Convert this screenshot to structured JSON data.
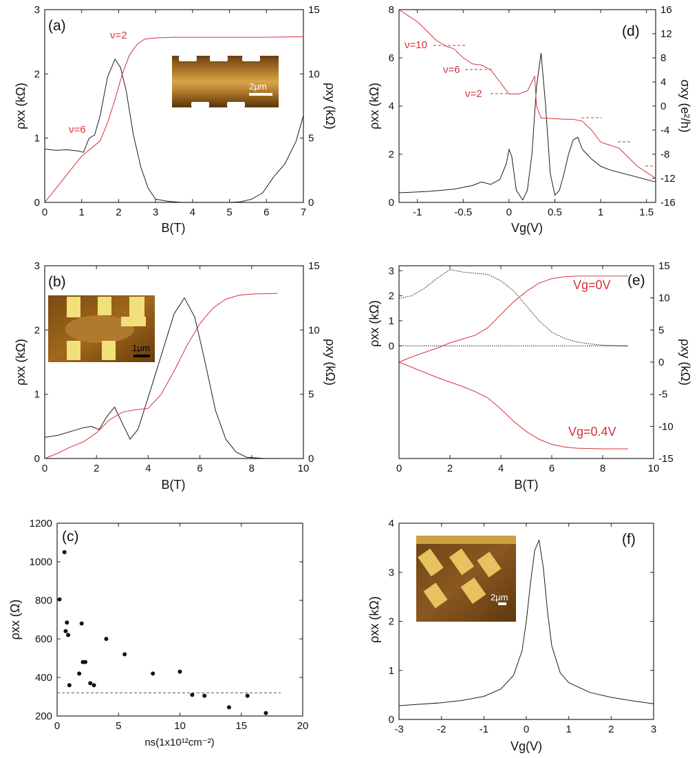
{
  "colors": {
    "black_series": "#1a1a1a",
    "red_series": "#d6303a",
    "afm_brown": "#8a5a1c",
    "afm_gold": "#e9c96a"
  },
  "chart_data": [
    {
      "panel": "(a)",
      "type": "line",
      "xlabel": "B(T)",
      "ylabel": "ρxx (kΩ)",
      "y2label": "ρxy (kΩ)",
      "xlim": [
        0,
        7
      ],
      "ylim": [
        0,
        3
      ],
      "y2lim": [
        0,
        15
      ],
      "xticks": [
        "0",
        "1",
        "2",
        "3",
        "4",
        "5",
        "6",
        "7"
      ],
      "yticks": [
        "0",
        "1",
        "2",
        "3"
      ],
      "y2ticks": [
        "0",
        "5",
        "10",
        "15"
      ],
      "annotations": [
        "ν=2",
        "ν=6"
      ],
      "inset": {
        "kind": "AFM image",
        "scale_bar": "2μm"
      },
      "series": [
        {
          "axis": "left",
          "color": "black",
          "x": [
            0,
            0.3,
            0.6,
            0.9,
            1.05,
            1.2,
            1.35,
            1.5,
            1.7,
            1.9,
            2.05,
            2.2,
            2.4,
            2.6,
            2.8,
            3.0,
            3.3,
            3.7,
            4.0,
            4.5,
            5.0,
            5.3,
            5.6,
            5.9,
            6.2,
            6.5,
            6.8,
            7.0
          ],
          "y": [
            0.83,
            0.81,
            0.82,
            0.8,
            0.78,
            1.0,
            1.05,
            1.35,
            1.95,
            2.23,
            2.1,
            1.75,
            1.05,
            0.55,
            0.22,
            0.05,
            0.02,
            0,
            0,
            0,
            0,
            0.01,
            0.05,
            0.15,
            0.4,
            0.6,
            0.95,
            1.35
          ]
        },
        {
          "axis": "right",
          "color": "red",
          "x": [
            0,
            0.5,
            1.0,
            1.3,
            1.5,
            1.7,
            1.9,
            2.1,
            2.3,
            2.5,
            2.7,
            3.0,
            3.5,
            4,
            5,
            6,
            7
          ],
          "y": [
            0,
            1.8,
            3.6,
            4.3,
            4.8,
            6.2,
            8.0,
            10.0,
            11.5,
            12.3,
            12.7,
            12.8,
            12.85,
            12.85,
            12.85,
            12.85,
            12.9
          ]
        }
      ]
    },
    {
      "panel": "(b)",
      "type": "line",
      "xlabel": "B(T)",
      "ylabel": "ρxx (kΩ)",
      "y2label": "ρxy (kΩ)",
      "xlim": [
        0,
        10
      ],
      "ylim": [
        0,
        3
      ],
      "y2lim": [
        0,
        15
      ],
      "xticks": [
        "0",
        "2",
        "4",
        "6",
        "8",
        "10"
      ],
      "yticks": [
        "0",
        "1",
        "2",
        "3"
      ],
      "y2ticks": [
        "0",
        "5",
        "10",
        "15"
      ],
      "inset": {
        "kind": "AFM image",
        "scale_bar": "1μm"
      },
      "series": [
        {
          "axis": "left",
          "color": "black",
          "x": [
            0,
            0.5,
            1,
            1.5,
            1.8,
            2.1,
            2.4,
            2.7,
            3.0,
            3.3,
            3.6,
            4.0,
            4.5,
            5.0,
            5.4,
            5.8,
            6.2,
            6.6,
            7.0,
            7.4,
            7.8,
            8.5,
            9
          ],
          "y": [
            0.33,
            0.36,
            0.42,
            0.48,
            0.5,
            0.45,
            0.65,
            0.8,
            0.55,
            0.3,
            0.45,
            0.95,
            1.6,
            2.25,
            2.5,
            2.2,
            1.5,
            0.75,
            0.3,
            0.1,
            0.02,
            0,
            0
          ]
        },
        {
          "axis": "right",
          "color": "red",
          "x": [
            0,
            0.5,
            1,
            1.5,
            2,
            2.5,
            3,
            3.5,
            4,
            4.5,
            5,
            5.5,
            6,
            6.5,
            7,
            7.5,
            8,
            9
          ],
          "y": [
            0,
            0.4,
            0.9,
            1.3,
            2.0,
            3.0,
            3.6,
            3.8,
            3.9,
            5.0,
            6.8,
            8.8,
            10.5,
            11.7,
            12.4,
            12.7,
            12.8,
            12.85
          ]
        }
      ]
    },
    {
      "panel": "(c)",
      "type": "scatter",
      "xlabel": "ns(1x10¹²cm⁻²)",
      "ylabel": "ρxx (Ω)",
      "xlim": [
        0,
        20
      ],
      "ylim": [
        200,
        1200
      ],
      "xticks": [
        "0",
        "5",
        "10",
        "15",
        "20"
      ],
      "yticks": [
        "200",
        "400",
        "600",
        "800",
        "1000",
        "1200"
      ],
      "reference_line_y": 320,
      "x": [
        0.2,
        0.6,
        0.7,
        0.8,
        0.9,
        1.0,
        1.8,
        2.0,
        2.1,
        2.3,
        2.7,
        3.0,
        4.0,
        5.5,
        7.8,
        10.0,
        11.0,
        12.0,
        14.0,
        15.5,
        17.0
      ],
      "y": [
        805,
        1050,
        640,
        685,
        620,
        360,
        420,
        680,
        480,
        480,
        370,
        360,
        600,
        520,
        420,
        430,
        310,
        305,
        245,
        305,
        215
      ]
    },
    {
      "panel": "(d)",
      "type": "line",
      "xlabel": "Vg(V)",
      "ylabel": "ρxx (kΩ)",
      "y2label": "σxy (e²/h)",
      "xlim": [
        -1.2,
        1.6
      ],
      "ylim": [
        0,
        8
      ],
      "y2lim": [
        -16,
        16
      ],
      "xticks": [
        "-1",
        "-0.5",
        "0",
        "0.5",
        "1",
        "1.5"
      ],
      "yticks": [
        "0",
        "2",
        "4",
        "6",
        "8"
      ],
      "y2ticks": [
        "-16",
        "-12",
        "-8",
        "-4",
        "0",
        "4",
        "8",
        "12",
        "16"
      ],
      "annotations": [
        "ν=10",
        "ν=6",
        "ν=2"
      ],
      "series": [
        {
          "axis": "left",
          "color": "black",
          "x": [
            -1.2,
            -0.9,
            -0.6,
            -0.4,
            -0.3,
            -0.2,
            -0.1,
            -0.03,
            0,
            0.03,
            0.08,
            0.15,
            0.2,
            0.25,
            0.3,
            0.35,
            0.4,
            0.45,
            0.5,
            0.55,
            0.6,
            0.65,
            0.7,
            0.75,
            0.8,
            0.9,
            1.0,
            1.1,
            1.3,
            1.5,
            1.6
          ],
          "y": [
            0.4,
            0.45,
            0.55,
            0.7,
            0.85,
            0.75,
            0.95,
            1.6,
            2.2,
            1.9,
            0.5,
            0.1,
            0.5,
            2.0,
            4.8,
            6.2,
            4.0,
            1.2,
            0.3,
            0.5,
            1.2,
            2.0,
            2.6,
            2.7,
            2.2,
            1.8,
            1.5,
            1.35,
            1.15,
            0.95,
            0.85
          ]
        },
        {
          "axis": "right",
          "color": "red",
          "x": [
            -1.2,
            -1.1,
            -1.0,
            -0.9,
            -0.8,
            -0.7,
            -0.6,
            -0.5,
            -0.4,
            -0.3,
            -0.2,
            -0.1,
            0,
            0.1,
            0.2,
            0.25,
            0.28,
            0.3,
            0.35,
            0.4,
            0.6,
            0.7,
            0.8,
            0.9,
            1.0,
            1.1,
            1.2,
            1.3,
            1.4,
            1.5,
            1.6
          ],
          "y": [
            16,
            15,
            14,
            12.5,
            11,
            10,
            9.5,
            8,
            7,
            6.8,
            6,
            4,
            2,
            2,
            2.5,
            4,
            5,
            0,
            -2,
            -2,
            -2.2,
            -2.2,
            -2.5,
            -4,
            -6,
            -6.5,
            -7,
            -8.5,
            -10,
            -11,
            -12
          ]
        }
      ]
    },
    {
      "panel": "(e)",
      "type": "line",
      "xlabel": "B(T)",
      "ylabel": "ρxx (kΩ)",
      "y2label": "ρxy (kΩ)",
      "xlim": [
        0,
        10
      ],
      "ylim": [
        -4.5,
        3.2
      ],
      "y2lim": [
        -15,
        15
      ],
      "xticks": [
        "0",
        "2",
        "4",
        "6",
        "8",
        "10"
      ],
      "yticks": [
        "0",
        "1",
        "2",
        "3"
      ],
      "y2ticks": [
        "-15",
        "-10",
        "-5",
        "0",
        "5",
        "10",
        "15"
      ],
      "annotations": [
        "Vg=0V",
        "Vg=0.4V"
      ],
      "series": [
        {
          "axis": "left",
          "color": "black",
          "dotted": true,
          "x": [
            0,
            0.5,
            1,
            1.5,
            2,
            2.5,
            3,
            3.5,
            4,
            4.5,
            5,
            5.5,
            6,
            6.5,
            7,
            7.5,
            8,
            8.5,
            9
          ],
          "y": [
            1.9,
            2.0,
            2.3,
            2.7,
            3.05,
            2.95,
            2.9,
            2.85,
            2.6,
            2.2,
            1.6,
            1.0,
            0.55,
            0.3,
            0.15,
            0.08,
            0.03,
            0.01,
            0
          ]
        },
        {
          "axis": "left",
          "color": "black",
          "dotted": true,
          "x": [
            0,
            9
          ],
          "y": [
            0,
            0
          ]
        },
        {
          "axis": "right",
          "color": "red",
          "name": "Vg=0V",
          "x": [
            0,
            0.5,
            1,
            1.5,
            2,
            2.5,
            3,
            3.5,
            4,
            4.5,
            5,
            5.5,
            6,
            6.5,
            7,
            8,
            9
          ],
          "y": [
            0,
            0.8,
            1.5,
            2.2,
            3.0,
            3.6,
            4.2,
            5.4,
            7.4,
            9.4,
            11.0,
            12.3,
            13.0,
            13.3,
            13.4,
            13.4,
            13.4
          ]
        },
        {
          "axis": "right",
          "color": "red",
          "name": "Vg=0.4V",
          "x": [
            0,
            0.5,
            1,
            1.5,
            2,
            2.5,
            3,
            3.5,
            4,
            4.5,
            5,
            5.5,
            6,
            6.5,
            7,
            8,
            9
          ],
          "y": [
            0,
            -0.8,
            -1.6,
            -2.4,
            -3.1,
            -3.8,
            -4.6,
            -5.6,
            -7.3,
            -9.2,
            -10.8,
            -12.0,
            -12.8,
            -13.2,
            -13.4,
            -13.5,
            -13.5
          ]
        }
      ]
    },
    {
      "panel": "(f)",
      "type": "line",
      "xlabel": "Vg(V)",
      "ylabel": "ρxx (kΩ)",
      "xlim": [
        -3,
        3
      ],
      "ylim": [
        0,
        4
      ],
      "xticks": [
        "-3",
        "-2",
        "-1",
        "0",
        "1",
        "2",
        "3"
      ],
      "yticks": [
        "0",
        "1",
        "2",
        "3",
        "4"
      ],
      "inset": {
        "kind": "AFM image",
        "scale_bar": "2μm"
      },
      "series": [
        {
          "axis": "left",
          "color": "black",
          "x": [
            -3,
            -2.5,
            -2,
            -1.5,
            -1,
            -0.6,
            -0.3,
            -0.1,
            0,
            0.1,
            0.2,
            0.3,
            0.4,
            0.5,
            0.6,
            0.8,
            1,
            1.5,
            2,
            2.5,
            3
          ],
          "y": [
            0.28,
            0.31,
            0.34,
            0.39,
            0.47,
            0.62,
            0.9,
            1.4,
            2.0,
            2.8,
            3.45,
            3.65,
            3.1,
            2.2,
            1.5,
            0.95,
            0.75,
            0.55,
            0.45,
            0.38,
            0.32
          ]
        }
      ]
    }
  ]
}
